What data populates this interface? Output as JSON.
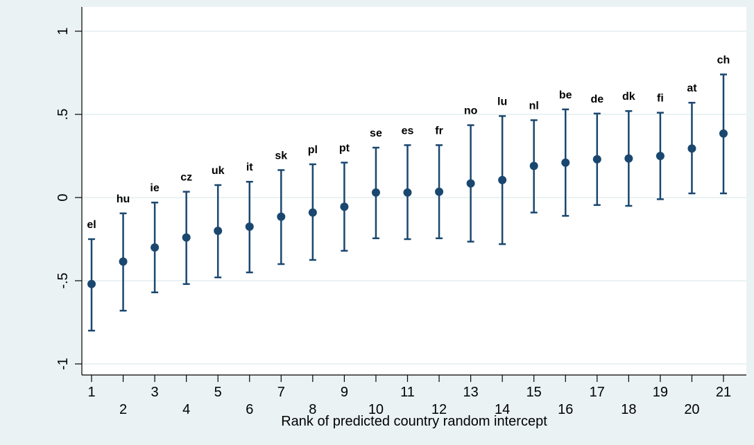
{
  "colors": {
    "background": "#eaf2f3",
    "plot_area": "#ffffff",
    "gridline": "#eaf2f3",
    "marker": "#1a476f",
    "axis": "#000000"
  },
  "chart_data": {
    "type": "scatter",
    "title": "",
    "xlabel": "Rank of predicted country random intercept",
    "ylabel": "",
    "ylim": [
      -1.1,
      1.05
    ],
    "xlim": [
      0.5,
      21.5
    ],
    "grid": true,
    "yticks": [
      {
        "value": -1,
        "label": "-1"
      },
      {
        "value": -0.5,
        "label": "-.5"
      },
      {
        "value": 0,
        "label": "0"
      },
      {
        "value": 0.5,
        "label": ".5"
      },
      {
        "value": 1,
        "label": "1"
      }
    ],
    "xticks": [
      {
        "value": 1,
        "label": "1"
      },
      {
        "value": 2,
        "label": "2"
      },
      {
        "value": 3,
        "label": "3"
      },
      {
        "value": 4,
        "label": "4"
      },
      {
        "value": 5,
        "label": "5"
      },
      {
        "value": 6,
        "label": "6"
      },
      {
        "value": 7,
        "label": "7"
      },
      {
        "value": 8,
        "label": "8"
      },
      {
        "value": 9,
        "label": "9"
      },
      {
        "value": 10,
        "label": "10"
      },
      {
        "value": 11,
        "label": "11"
      },
      {
        "value": 12,
        "label": "12"
      },
      {
        "value": 13,
        "label": "13"
      },
      {
        "value": 14,
        "label": "14"
      },
      {
        "value": 15,
        "label": "15"
      },
      {
        "value": 16,
        "label": "16"
      },
      {
        "value": 17,
        "label": "17"
      },
      {
        "value": 18,
        "label": "18"
      },
      {
        "value": 19,
        "label": "19"
      },
      {
        "value": 20,
        "label": "20"
      },
      {
        "value": 21,
        "label": "21"
      }
    ],
    "points": [
      {
        "rank": 1,
        "label": "el",
        "estimate": -0.52,
        "lower": -0.8,
        "upper": -0.25
      },
      {
        "rank": 2,
        "label": "hu",
        "estimate": -0.385,
        "lower": -0.68,
        "upper": -0.095
      },
      {
        "rank": 3,
        "label": "ie",
        "estimate": -0.3,
        "lower": -0.57,
        "upper": -0.03
      },
      {
        "rank": 4,
        "label": "cz",
        "estimate": -0.24,
        "lower": -0.52,
        "upper": 0.035
      },
      {
        "rank": 5,
        "label": "uk",
        "estimate": -0.2,
        "lower": -0.48,
        "upper": 0.075
      },
      {
        "rank": 6,
        "label": "it",
        "estimate": -0.175,
        "lower": -0.45,
        "upper": 0.095
      },
      {
        "rank": 7,
        "label": "sk",
        "estimate": -0.115,
        "lower": -0.4,
        "upper": 0.165
      },
      {
        "rank": 8,
        "label": "pl",
        "estimate": -0.09,
        "lower": -0.375,
        "upper": 0.2
      },
      {
        "rank": 9,
        "label": "pt",
        "estimate": -0.055,
        "lower": -0.32,
        "upper": 0.21
      },
      {
        "rank": 10,
        "label": "se",
        "estimate": 0.03,
        "lower": -0.245,
        "upper": 0.3
      },
      {
        "rank": 11,
        "label": "es",
        "estimate": 0.03,
        "lower": -0.25,
        "upper": 0.315
      },
      {
        "rank": 12,
        "label": "fr",
        "estimate": 0.035,
        "lower": -0.245,
        "upper": 0.315
      },
      {
        "rank": 13,
        "label": "no",
        "estimate": 0.085,
        "lower": -0.265,
        "upper": 0.435
      },
      {
        "rank": 14,
        "label": "lu",
        "estimate": 0.105,
        "lower": -0.28,
        "upper": 0.49
      },
      {
        "rank": 15,
        "label": "nl",
        "estimate": 0.19,
        "lower": -0.09,
        "upper": 0.465
      },
      {
        "rank": 16,
        "label": "be",
        "estimate": 0.21,
        "lower": -0.11,
        "upper": 0.53
      },
      {
        "rank": 17,
        "label": "de",
        "estimate": 0.23,
        "lower": -0.045,
        "upper": 0.505
      },
      {
        "rank": 18,
        "label": "dk",
        "estimate": 0.235,
        "lower": -0.05,
        "upper": 0.52
      },
      {
        "rank": 19,
        "label": "fi",
        "estimate": 0.25,
        "lower": -0.01,
        "upper": 0.51
      },
      {
        "rank": 20,
        "label": "at",
        "estimate": 0.295,
        "lower": 0.025,
        "upper": 0.57
      },
      {
        "rank": 21,
        "label": "ch",
        "estimate": 0.385,
        "lower": 0.025,
        "upper": 0.74
      }
    ]
  }
}
